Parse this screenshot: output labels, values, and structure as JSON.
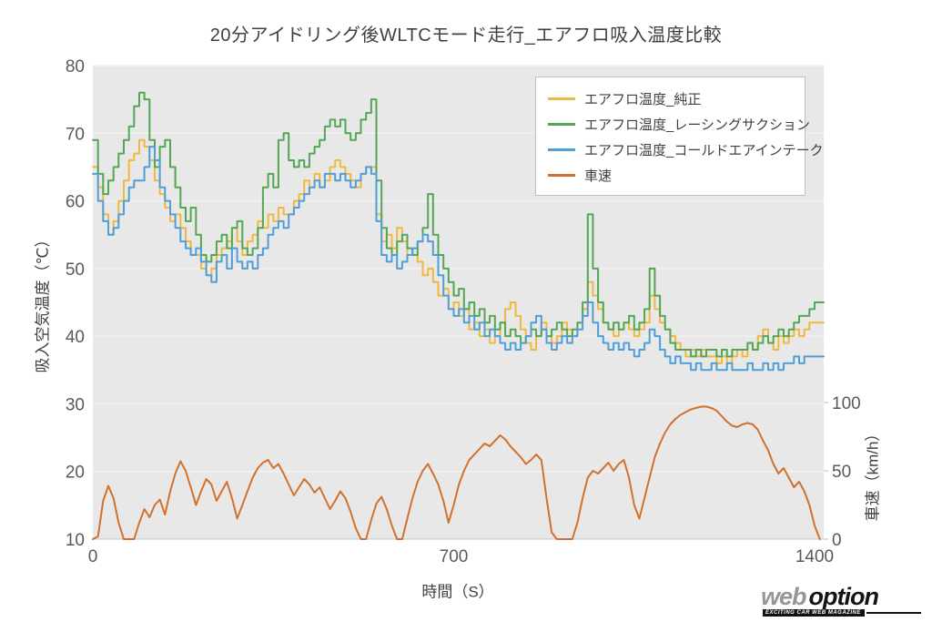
{
  "logo": {
    "word1": "web",
    "word2": "option",
    "tagline": "EXCITING CAR WEB MAGAZINE"
  },
  "chart_data": {
    "type": "line",
    "title": "20分アイドリング後WLTCモード走行_エアフロ吸入温度比較",
    "xlabel": "時間（S）",
    "ylabel_left": "吸入空気温度（℃）",
    "ylabel_right": "車速（km/h）",
    "x_ticks": [
      0,
      700,
      1400
    ],
    "y_left_ticks": [
      10,
      20,
      30,
      40,
      50,
      60,
      70,
      80
    ],
    "y_right_ticks": [
      0,
      50,
      100
    ],
    "y_left_range": [
      10,
      80
    ],
    "y_right_range": [
      0,
      100
    ],
    "x_range": [
      0,
      1410
    ],
    "x_start": 0,
    "x_step": 10,
    "grid": "horizontal-only",
    "legend_position": "top-right",
    "plot_bg": "#E9E8E8",
    "series": [
      {
        "name": "エアフロ温度_純正",
        "color": "#EFB83E",
        "axis": "left",
        "style": "step",
        "values": [
          65,
          62,
          58,
          55,
          57,
          60,
          63,
          66,
          67,
          69,
          68,
          66,
          63,
          61,
          59,
          57,
          58,
          56,
          54,
          52,
          52,
          50,
          49,
          50,
          52,
          53,
          54,
          56,
          54,
          52,
          54,
          55,
          57,
          56,
          58,
          57,
          59,
          58,
          58,
          60,
          61,
          63,
          62,
          64,
          62,
          63,
          65,
          66,
          65,
          64,
          63,
          62,
          64,
          65,
          65,
          58,
          54,
          55,
          53,
          56,
          54,
          52,
          53,
          51,
          49,
          50,
          48,
          46,
          47,
          44,
          45,
          43,
          44,
          41,
          42,
          40,
          41,
          39,
          40,
          42,
          44,
          45,
          43,
          41,
          39,
          38,
          40,
          42,
          40,
          39,
          40,
          42,
          41,
          40,
          42,
          44,
          48,
          46,
          44,
          42,
          41,
          40,
          41,
          42,
          41,
          40,
          41,
          42,
          46,
          44,
          42,
          41,
          40,
          39,
          38,
          37,
          38,
          37,
          38,
          37,
          37,
          36,
          37,
          36,
          37,
          38,
          37,
          39,
          38,
          40,
          41,
          39,
          38,
          40,
          39,
          40,
          41,
          40,
          41,
          42,
          42
        ]
      },
      {
        "name": "エアフロ温度_レーシングサクション",
        "color": "#53A653",
        "axis": "left",
        "style": "step",
        "values": [
          69,
          64,
          61,
          63,
          65,
          67,
          69,
          71,
          74,
          76,
          75,
          69,
          65,
          68,
          69,
          65,
          62,
          59,
          57,
          59,
          55,
          52,
          51,
          52,
          54,
          55,
          53,
          56,
          57,
          53,
          52,
          53,
          56,
          62,
          64,
          62,
          69,
          70,
          66,
          65,
          66,
          65,
          67,
          68,
          69,
          71,
          72,
          71,
          72,
          70,
          69,
          70,
          72,
          73,
          75,
          63,
          56,
          53,
          52,
          54,
          55,
          53,
          52,
          54,
          56,
          61,
          55,
          52,
          50,
          48,
          46,
          47,
          44,
          45,
          43,
          44,
          42,
          43,
          41,
          42,
          40,
          41,
          40,
          39,
          40,
          41,
          40,
          41,
          40,
          41,
          42,
          41,
          40,
          41,
          42,
          45,
          58,
          50,
          45,
          42,
          41,
          42,
          41,
          42,
          43,
          41,
          42,
          44,
          50,
          46,
          43,
          41,
          39,
          38,
          38,
          38,
          37,
          38,
          37,
          38,
          38,
          37,
          38,
          37,
          38,
          38,
          38,
          39,
          38,
          39,
          40,
          39,
          40,
          41,
          40,
          41,
          42,
          43,
          43,
          44,
          45
        ]
      },
      {
        "name": "エアフロ温度_コールドエアインテーク",
        "color": "#4E9FD9",
        "axis": "left",
        "style": "step",
        "values": [
          64,
          60,
          57,
          55,
          56,
          58,
          60,
          62,
          63,
          63,
          65,
          68,
          66,
          62,
          60,
          58,
          56,
          54,
          53,
          52,
          53,
          51,
          49,
          48,
          51,
          52,
          50,
          53,
          51,
          50,
          51,
          50,
          52,
          53,
          55,
          56,
          57,
          56,
          58,
          59,
          60,
          61,
          62,
          63,
          62,
          64,
          64,
          63,
          64,
          63,
          62,
          63,
          64,
          65,
          64,
          57,
          52,
          51,
          52,
          50,
          51,
          52,
          53,
          54,
          55,
          54,
          52,
          49,
          46,
          44,
          43,
          44,
          42,
          43,
          41,
          42,
          40,
          41,
          40,
          39,
          38,
          39,
          38,
          39,
          40,
          42,
          43,
          41,
          39,
          38,
          39,
          40,
          39,
          40,
          41,
          43,
          45,
          42,
          40,
          39,
          38,
          39,
          38,
          39,
          38,
          37,
          38,
          39,
          41,
          40,
          38,
          37,
          36,
          37,
          36,
          36,
          35,
          36,
          35,
          35,
          36,
          35,
          35,
          36,
          35,
          35,
          35,
          36,
          35,
          35,
          36,
          35,
          36,
          35,
          36,
          36,
          37,
          36,
          37,
          37,
          37
        ]
      },
      {
        "name": "車速",
        "color": "#D2712E",
        "axis": "right",
        "style": "linear",
        "values": [
          0,
          2,
          28,
          39,
          30,
          12,
          0,
          0,
          0,
          12,
          22,
          16,
          25,
          29,
          18,
          35,
          48,
          57,
          50,
          38,
          25,
          35,
          44,
          40,
          28,
          35,
          42,
          30,
          15,
          25,
          35,
          45,
          52,
          56,
          58,
          52,
          55,
          48,
          40,
          32,
          38,
          44,
          40,
          34,
          38,
          30,
          22,
          28,
          35,
          30,
          20,
          8,
          0,
          0,
          14,
          26,
          31,
          22,
          10,
          0,
          0,
          15,
          30,
          42,
          50,
          55,
          48,
          40,
          28,
          12,
          25,
          40,
          50,
          58,
          62,
          66,
          70,
          68,
          72,
          76,
          73,
          68,
          64,
          60,
          55,
          58,
          62,
          58,
          30,
          5,
          0,
          0,
          0,
          0,
          12,
          30,
          45,
          50,
          48,
          52,
          56,
          50,
          55,
          58,
          45,
          25,
          15,
          30,
          45,
          60,
          70,
          78,
          84,
          88,
          91,
          93,
          95,
          96,
          97,
          97,
          96,
          94,
          90,
          86,
          83,
          82,
          84,
          85,
          84,
          80,
          72,
          65,
          55,
          48,
          52,
          45,
          38,
          42,
          35,
          25,
          10,
          0
        ]
      }
    ]
  }
}
